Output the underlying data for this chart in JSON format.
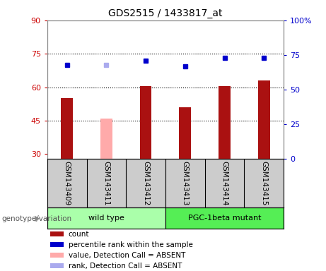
{
  "title": "GDS2515 / 1433817_at",
  "samples": [
    "GSM143409",
    "GSM143411",
    "GSM143412",
    "GSM143413",
    "GSM143414",
    "GSM143415"
  ],
  "bar_values": [
    55,
    46,
    60.5,
    51,
    60.5,
    63
  ],
  "bar_colors": [
    "#aa1111",
    "#ffaaaa",
    "#aa1111",
    "#aa1111",
    "#aa1111",
    "#aa1111"
  ],
  "dot_values": [
    70,
    70,
    72,
    69.5,
    73,
    73
  ],
  "dot_colors": [
    "#0000cc",
    "#aaaaee",
    "#0000cc",
    "#0000cc",
    "#0000cc",
    "#0000cc"
  ],
  "ylim_left": [
    28,
    90
  ],
  "ylim_right": [
    0,
    100
  ],
  "yticks_left": [
    30,
    45,
    60,
    75,
    90
  ],
  "yticks_right": [
    0,
    25,
    50,
    75,
    100
  ],
  "ytick_labels_right": [
    "0",
    "25",
    "50",
    "75",
    "100%"
  ],
  "hlines": [
    45,
    60,
    75
  ],
  "groups": [
    {
      "label": "wild type",
      "samples": [
        0,
        1,
        2
      ],
      "color": "#aaffaa"
    },
    {
      "label": "PGC-1beta mutant",
      "samples": [
        3,
        4,
        5
      ],
      "color": "#55ee55"
    }
  ],
  "group_label": "genotype/variation",
  "legend_items": [
    {
      "label": "count",
      "color": "#aa1111"
    },
    {
      "label": "percentile rank within the sample",
      "color": "#0000cc"
    },
    {
      "label": "value, Detection Call = ABSENT",
      "color": "#ffaaaa"
    },
    {
      "label": "rank, Detection Call = ABSENT",
      "color": "#aaaaee"
    }
  ],
  "group_bg_color": "#cccccc",
  "left_tick_color": "#cc0000",
  "right_tick_color": "#0000cc",
  "bar_width": 0.3
}
